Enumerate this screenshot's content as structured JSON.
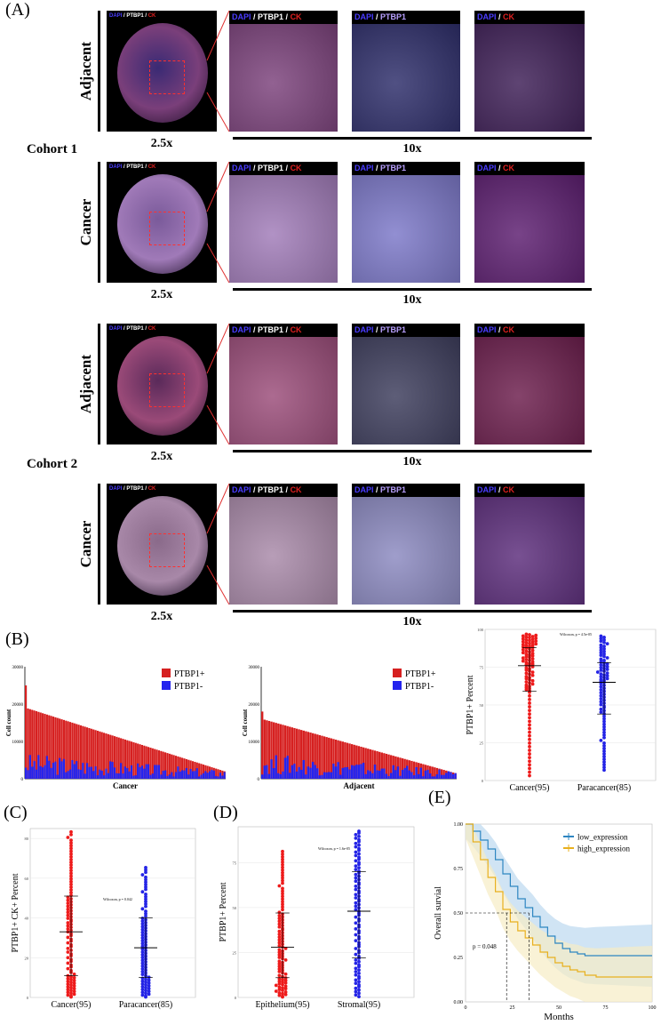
{
  "panel_labels": {
    "A": "(A)",
    "B": "(B)",
    "C": "(C)",
    "D": "(D)",
    "E": "(E)"
  },
  "panelA": {
    "cohort1": "Cohort 1",
    "cohort2": "Cohort 2",
    "rows": [
      {
        "label": "Adjacent",
        "mag_left": "2.5x",
        "mag_right": "10x"
      },
      {
        "label": "Cancer",
        "mag_left": "2.5x",
        "mag_right": "10x"
      },
      {
        "label": "Adjacent",
        "mag_left": "2.5x",
        "mag_right": "10x"
      },
      {
        "label": "Cancer",
        "mag_left": "2.5x",
        "mag_right": "10x"
      }
    ],
    "stain": {
      "dapi": "DAPI",
      "sep": " / ",
      "ptbp1": "PTBP1",
      "ck": "CK"
    },
    "colors": {
      "dapi": "#4a3cff",
      "ptbp1": "#ffffff",
      "ck": "#e02020",
      "ptbp1_purple": "#b9a0ff"
    }
  },
  "chart_data": [
    {
      "type": "bar",
      "id": "B-cancer",
      "xlabel": "Cancer",
      "ylabel": "Cell count",
      "ylim": [
        0,
        30000
      ],
      "yticks": [
        "0",
        "10000",
        "20000",
        "30000"
      ],
      "legend": [
        "PTBP1+",
        "PTBP1-"
      ],
      "colors": {
        "pos": "#d62020",
        "neg": "#2424ee"
      },
      "n": 95,
      "total_start": 25000,
      "total_second": 19000,
      "total_end": 2000,
      "neg_mean": 3000
    },
    {
      "type": "bar",
      "id": "B-adjacent",
      "xlabel": "Adjacent",
      "ylabel": "Cell count",
      "ylim": [
        0,
        30000
      ],
      "yticks": [
        "0",
        "10000",
        "20000",
        "30000"
      ],
      "legend": [
        "PTBP1+",
        "PTBP1-"
      ],
      "colors": {
        "pos": "#d62020",
        "neg": "#2424ee"
      },
      "n": 85,
      "total_start": 18000,
      "total_second": 16000,
      "total_end": 1500,
      "neg_mean": 3000
    },
    {
      "type": "scatter",
      "id": "B-percent",
      "ylabel": "PTBP1+ Percent",
      "note": "Wilcoxon, p = 4.5e-05",
      "yticks": [
        "0",
        "25",
        "50",
        "75",
        "100"
      ],
      "groups": [
        {
          "name": "Cancer(95)",
          "n": 95,
          "median": 76,
          "q1": 59,
          "q3": 88,
          "color": "#ee1b1b",
          "min": 2,
          "max": 97
        },
        {
          "name": "Paracancer(85)",
          "n": 85,
          "median": 65,
          "q1": 44,
          "q3": 78,
          "color": "#2424e6",
          "min": 6,
          "max": 96
        }
      ]
    },
    {
      "type": "scatter",
      "id": "C",
      "ylabel": "PTBP1+ CK+ Percent",
      "note": "Wilcoxon, p = 0.042",
      "yticks": [
        "0",
        "20",
        "40",
        "60",
        "80"
      ],
      "ymax": 85,
      "groups": [
        {
          "name": "Cancer(95)",
          "n": 95,
          "median": 33,
          "q1": 11,
          "q3": 51,
          "color": "#ee1b1b",
          "min": 0,
          "max": 84
        },
        {
          "name": "Paracancer(85)",
          "n": 85,
          "median": 25,
          "q1": 10,
          "q3": 40,
          "color": "#2424e6",
          "min": 0,
          "max": 66
        }
      ]
    },
    {
      "type": "scatter",
      "id": "D",
      "ylabel": "PTBP1+ Percent",
      "note": "Wilcoxon, p = 1.6e-05",
      "yticks": [
        "0",
        "25",
        "50",
        "75"
      ],
      "ymax": 95,
      "groups": [
        {
          "name": "Epithelium(95)",
          "n": 95,
          "median": 28,
          "q1": 11,
          "q3": 47,
          "color": "#ee1b1b",
          "min": 0,
          "max": 82
        },
        {
          "name": "Stromal(95)",
          "n": 95,
          "median": 48,
          "q1": 22,
          "q3": 70,
          "color": "#2424e6",
          "min": 0,
          "max": 93
        }
      ]
    },
    {
      "type": "line",
      "id": "E",
      "xlabel": "Months",
      "ylabel": "Overall survial",
      "xlim": [
        0,
        100
      ],
      "ylim": [
        0,
        1
      ],
      "xticks": [
        "0",
        "25",
        "50",
        "75",
        "100"
      ],
      "yticks": [
        "0.00",
        "0.25",
        "0.50",
        "0.75",
        "1.00"
      ],
      "pvalue": "p = 0.048",
      "series": [
        {
          "name": "low_expression",
          "color": "#2e86c1",
          "band": "#bcd9f0",
          "x": [
            0,
            4,
            8,
            12,
            16,
            20,
            24,
            28,
            32,
            36,
            40,
            44,
            48,
            52,
            56,
            60,
            64,
            70,
            80,
            90,
            100
          ],
          "y": [
            1.0,
            0.96,
            0.91,
            0.86,
            0.8,
            0.72,
            0.65,
            0.58,
            0.53,
            0.48,
            0.42,
            0.37,
            0.33,
            0.3,
            0.28,
            0.27,
            0.26,
            0.26,
            0.26,
            0.26,
            0.26
          ]
        },
        {
          "name": "high_expression",
          "color": "#e8b01e",
          "band": "#f6edc4",
          "x": [
            0,
            4,
            8,
            12,
            16,
            20,
            24,
            28,
            32,
            36,
            40,
            44,
            48,
            52,
            56,
            60,
            64,
            70,
            80,
            90,
            100
          ],
          "y": [
            1.0,
            0.9,
            0.8,
            0.7,
            0.62,
            0.52,
            0.45,
            0.4,
            0.36,
            0.32,
            0.28,
            0.25,
            0.22,
            0.2,
            0.18,
            0.17,
            0.15,
            0.14,
            0.14,
            0.14,
            0.14
          ]
        }
      ],
      "medians": [
        22,
        34
      ]
    }
  ]
}
